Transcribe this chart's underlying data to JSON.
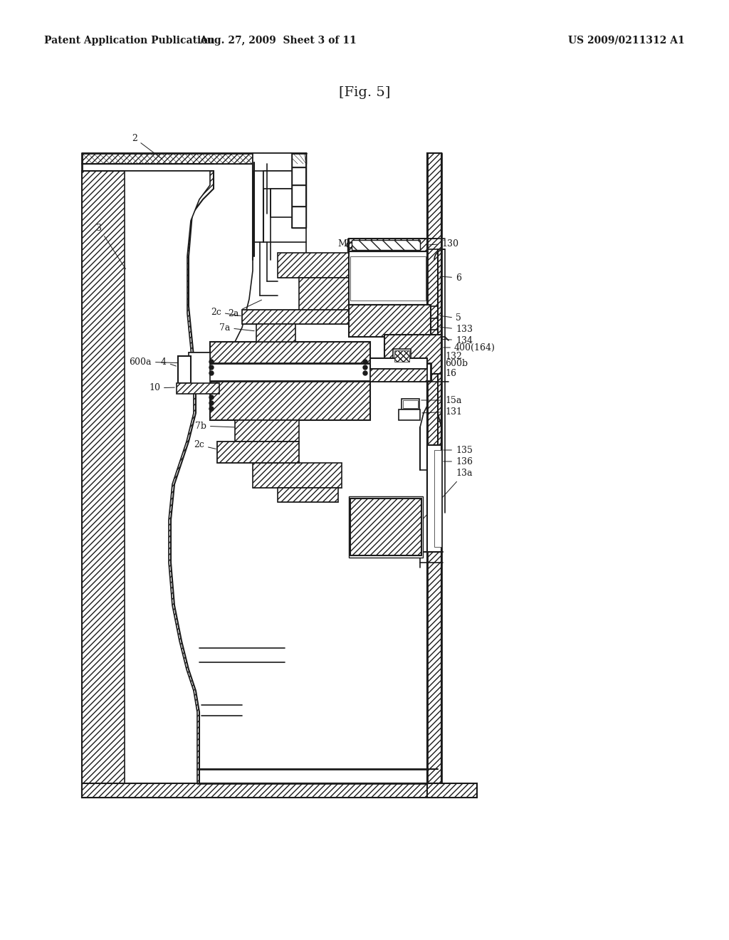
{
  "title": "[Fig. 5]",
  "header_left": "Patent Application Publication",
  "header_center": "Aug. 27, 2009  Sheet 3 of 11",
  "header_right": "US 2009/0211312 A1",
  "bg": "#ffffff",
  "lc": "#1a1a1a"
}
